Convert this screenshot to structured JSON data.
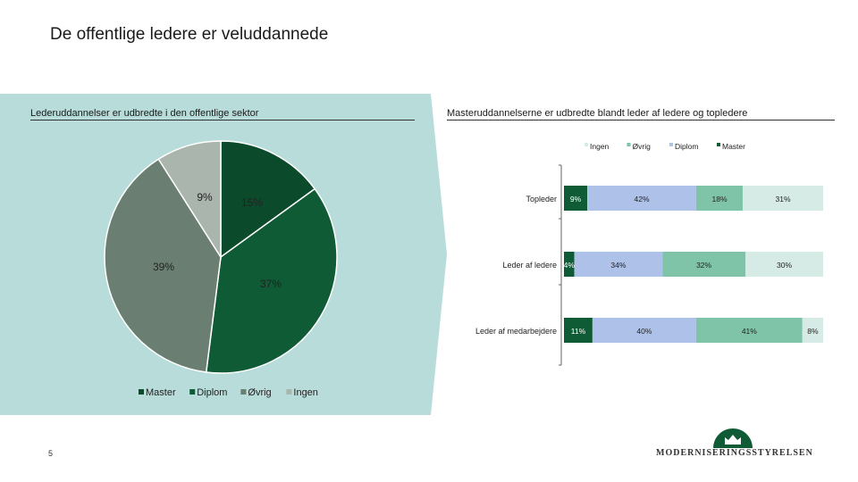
{
  "page": {
    "title": "De offentlige ledere er veluddannede",
    "page_number": "5"
  },
  "logo": {
    "text": "MODERNISERINGSSTYRELSEN",
    "icon": "crown-icon"
  },
  "colors": {
    "background_left": "#b7dcd9",
    "background_right": "#ffffff",
    "master": "#0c4a2c",
    "diplom": "#0f5b36",
    "ovrig": "#6a7f71",
    "ingen": "#aab5ad",
    "bar_master": "#0f5b36",
    "bar_diplom": "#aec1e8",
    "bar_ovrig": "#7fc4a8",
    "bar_ingen": "#d7ebe6"
  },
  "chart_data": [
    {
      "type": "pie",
      "title": "Lederuddannelser er udbredte i den offentlige sektor",
      "labels": [
        "Master",
        "Diplom",
        "Øvrig",
        "Ingen"
      ],
      "values": [
        15,
        37,
        39,
        9
      ],
      "value_labels": [
        "15%",
        "37%",
        "39%",
        "9%"
      ],
      "legend": [
        "Master",
        "Diplom",
        "Øvrig",
        "Ingen"
      ],
      "legend_position": "bottom"
    },
    {
      "type": "bar",
      "orientation": "horizontal",
      "stacked": true,
      "title": "Masteruddannelserne er udbredte blandt leder af ledere og topledere",
      "categories": [
        "Topleder",
        "Leder af ledere",
        "Leder af medarbejdere"
      ],
      "series": [
        {
          "name": "Master",
          "values": [
            9,
            4,
            11
          ],
          "labels": [
            "9%",
            "4%",
            "11%"
          ]
        },
        {
          "name": "Diplom",
          "values": [
            42,
            34,
            40
          ],
          "labels": [
            "42%",
            "34%",
            "40%"
          ]
        },
        {
          "name": "Øvrig",
          "values": [
            18,
            32,
            41
          ],
          "labels": [
            "18%",
            "32%",
            "41%"
          ]
        },
        {
          "name": "Ingen",
          "values": [
            31,
            30,
            8
          ],
          "labels": [
            "31%",
            "30%",
            "8%"
          ]
        }
      ],
      "legend": [
        "Ingen",
        "Øvrig",
        "Diplom",
        "Master"
      ],
      "legend_position": "top",
      "xlim": [
        0,
        100
      ]
    }
  ]
}
